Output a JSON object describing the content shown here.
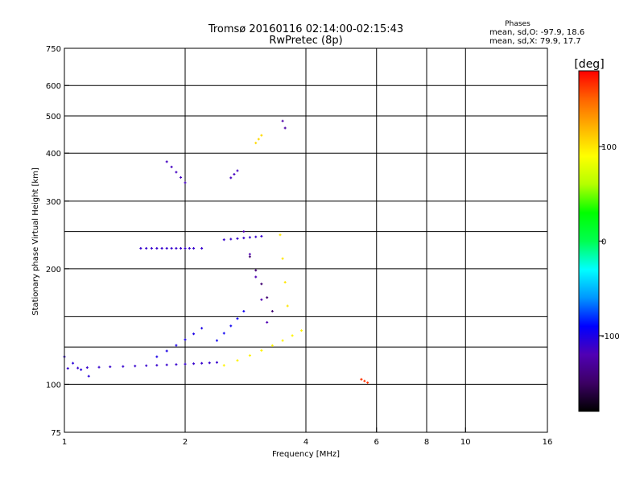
{
  "chart_data": {
    "type": "scatter",
    "title": "Tromsø 20160116 02:14:00-02:15:43",
    "subtitle": "RwPretec (8p)",
    "xlabel": "Frequency [MHz]",
    "ylabel": "Stationary phase Virtual Height [km]",
    "x_scale": "log",
    "y_scale": "log",
    "xlim": [
      1,
      16
    ],
    "ylim": [
      75,
      750
    ],
    "x_ticks": [
      1,
      2,
      4,
      6,
      8,
      10,
      16
    ],
    "x_gridlines": [
      2,
      4,
      6,
      8,
      10
    ],
    "y_ticks": [
      75,
      100,
      200,
      300,
      400,
      500,
      600,
      750
    ],
    "y_gridlines": [
      100,
      125,
      150,
      200,
      250,
      300,
      400,
      500,
      600
    ],
    "grid": true,
    "stats": {
      "heading": "Phases",
      "line_o": "mean, sd,O: -97.9, 18.6",
      "line_x": "mean, sd,X:  79.9, 17.7"
    },
    "colorbar": {
      "label": "[deg]",
      "range": [
        -180,
        180
      ],
      "ticks": [
        100,
        0,
        -100
      ],
      "colors": [
        "#000000",
        "#3c0064",
        "#5000b4",
        "#0000ff",
        "#0096ff",
        "#00ffff",
        "#00ff50",
        "#00ff00",
        "#b4ff00",
        "#ffff00",
        "#ffb400",
        "#ff6400",
        "#ff0000"
      ]
    },
    "series": [
      {
        "x": [
          1.02,
          1.08,
          1.14,
          1.22,
          1.3,
          1.4,
          1.5,
          1.6,
          1.7,
          1.8,
          1.9,
          2.0,
          2.1,
          2.2,
          2.3,
          2.4
        ],
        "y_start": 110,
        "y_end": 114,
        "phase": -110
      },
      {
        "x": [
          1.0,
          1.05,
          1.1,
          1.15
        ],
        "y_start": 118,
        "y_end": 105,
        "phase": -105
      },
      {
        "x": [
          1.55,
          1.6,
          1.65,
          1.7,
          1.75,
          1.8,
          1.85,
          1.9,
          1.95,
          2.0,
          2.05,
          2.1,
          2.2
        ],
        "y_start": 226,
        "y_end": 226,
        "phase": -110
      },
      {
        "x": [
          2.5,
          2.6,
          2.7,
          2.8,
          2.9,
          3.0,
          3.1
        ],
        "y_start": 238,
        "y_end": 243,
        "phase": -110
      },
      {
        "x": [
          2.5,
          2.7,
          2.9,
          3.1,
          3.3,
          3.5,
          3.7,
          3.9
        ],
        "y_start": 112,
        "y_end": 138,
        "phase": 95
      },
      {
        "x": [
          3.45,
          3.5,
          3.55,
          3.6
        ],
        "y_start": 245,
        "y_end": 160,
        "phase": 100
      },
      {
        "x": [
          2.8,
          2.9,
          3.0,
          3.1,
          3.2
        ],
        "y_start": 250,
        "y_end": 145,
        "phase": -120
      },
      {
        "x": [
          2.9,
          3.0,
          3.1,
          3.2,
          3.3
        ],
        "y_start": 215,
        "y_end": 155,
        "phase": -145
      },
      {
        "x": [
          2.4,
          2.5,
          2.6,
          2.7,
          2.8
        ],
        "y_start": 130,
        "y_end": 155,
        "phase": -95
      },
      {
        "x": [
          1.7,
          1.8,
          1.9,
          2.0,
          2.1,
          2.2
        ],
        "y_start": 118,
        "y_end": 140,
        "phase": -100
      },
      {
        "x": [
          1.8,
          1.85,
          1.9,
          1.95,
          2.0
        ],
        "y_start": 380,
        "y_end": 335,
        "phase": -115
      },
      {
        "x": [
          2.6,
          2.65,
          2.7
        ],
        "y_start": 345,
        "y_end": 360,
        "phase": -115
      },
      {
        "x": [
          5.5,
          5.6,
          5.7
        ],
        "y_start": 103,
        "y_end": 101,
        "phase": 165
      },
      {
        "x": [
          3.5,
          3.55
        ],
        "y_start": 485,
        "y_end": 465,
        "phase": -125
      },
      {
        "x": [
          3.0,
          3.05,
          3.1
        ],
        "y_start": 425,
        "y_end": 445,
        "phase": 105
      }
    ]
  }
}
